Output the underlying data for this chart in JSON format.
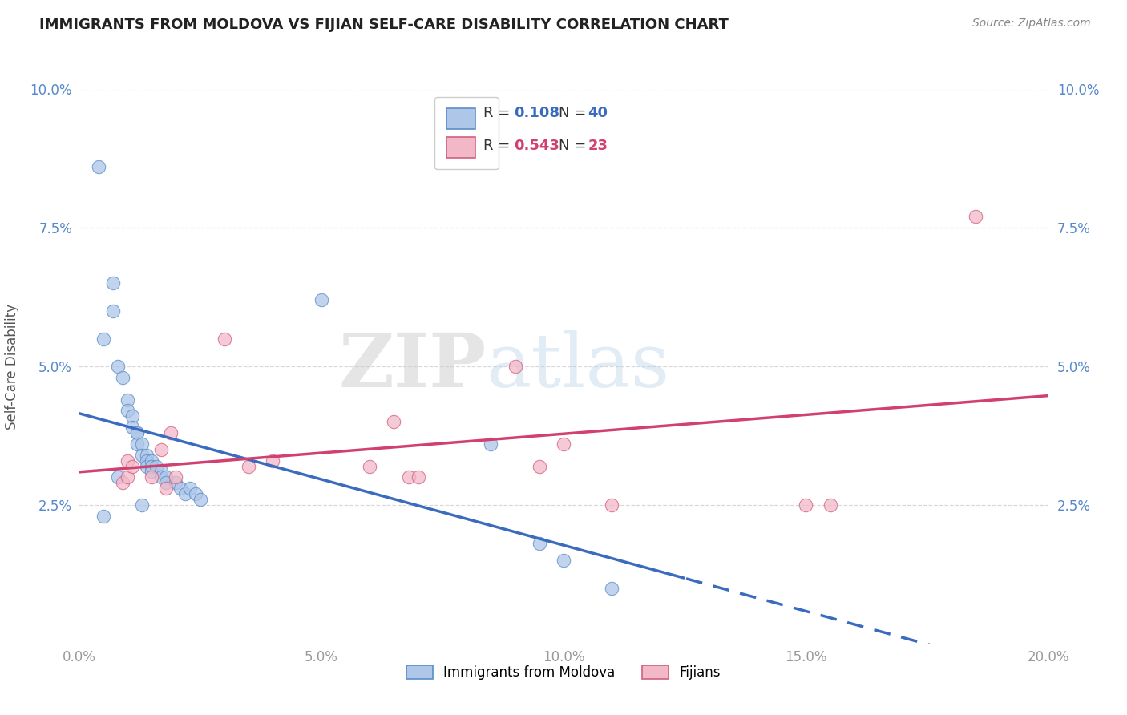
{
  "title": "IMMIGRANTS FROM MOLDOVA VS FIJIAN SELF-CARE DISABILITY CORRELATION CHART",
  "source": "Source: ZipAtlas.com",
  "ylabel": "Self-Care Disability",
  "xlim": [
    0.0,
    0.2
  ],
  "ylim": [
    0.0,
    0.1
  ],
  "xtick_labels": [
    "0.0%",
    "5.0%",
    "10.0%",
    "15.0%",
    "20.0%"
  ],
  "xtick_vals": [
    0.0,
    0.05,
    0.1,
    0.15,
    0.2
  ],
  "ytick_labels": [
    "2.5%",
    "5.0%",
    "7.5%",
    "10.0%"
  ],
  "ytick_vals": [
    0.025,
    0.05,
    0.075,
    0.1
  ],
  "blue_face": "#aec6e8",
  "blue_edge": "#5b8ec8",
  "blue_line": "#3a6bbf",
  "pink_face": "#f2b8c8",
  "pink_edge": "#d06080",
  "pink_line": "#d04070",
  "legend_series1": "Immigrants from Moldova",
  "legend_series2": "Fijians",
  "blue_x": [
    0.004,
    0.007,
    0.007,
    0.008,
    0.009,
    0.01,
    0.01,
    0.011,
    0.011,
    0.012,
    0.012,
    0.012,
    0.013,
    0.013,
    0.014,
    0.014,
    0.014,
    0.015,
    0.015,
    0.015,
    0.016,
    0.017,
    0.017,
    0.018,
    0.018,
    0.02,
    0.021,
    0.022,
    0.023,
    0.024,
    0.025,
    0.005,
    0.008,
    0.05,
    0.085,
    0.095,
    0.1,
    0.11,
    0.013,
    0.005
  ],
  "blue_y": [
    0.086,
    0.065,
    0.06,
    0.05,
    0.048,
    0.044,
    0.042,
    0.041,
    0.039,
    0.038,
    0.038,
    0.036,
    0.036,
    0.034,
    0.034,
    0.033,
    0.032,
    0.033,
    0.032,
    0.031,
    0.032,
    0.031,
    0.03,
    0.03,
    0.029,
    0.029,
    0.028,
    0.027,
    0.028,
    0.027,
    0.026,
    0.055,
    0.03,
    0.062,
    0.036,
    0.018,
    0.015,
    0.01,
    0.025,
    0.023
  ],
  "pink_x": [
    0.009,
    0.01,
    0.01,
    0.011,
    0.015,
    0.017,
    0.018,
    0.019,
    0.02,
    0.03,
    0.035,
    0.04,
    0.06,
    0.065,
    0.068,
    0.07,
    0.09,
    0.095,
    0.1,
    0.11,
    0.15,
    0.155,
    0.185
  ],
  "pink_y": [
    0.029,
    0.033,
    0.03,
    0.032,
    0.03,
    0.035,
    0.028,
    0.038,
    0.03,
    0.055,
    0.032,
    0.033,
    0.032,
    0.04,
    0.03,
    0.03,
    0.05,
    0.032,
    0.036,
    0.025,
    0.025,
    0.025,
    0.077
  ],
  "watermark_zip": "ZIP",
  "watermark_atlas": "atlas",
  "bg_color": "#ffffff",
  "grid_color": "#d8d8d8",
  "title_color": "#222222",
  "source_color": "#888888",
  "tick_color_y": "#5588cc",
  "tick_color_x": "#999999"
}
